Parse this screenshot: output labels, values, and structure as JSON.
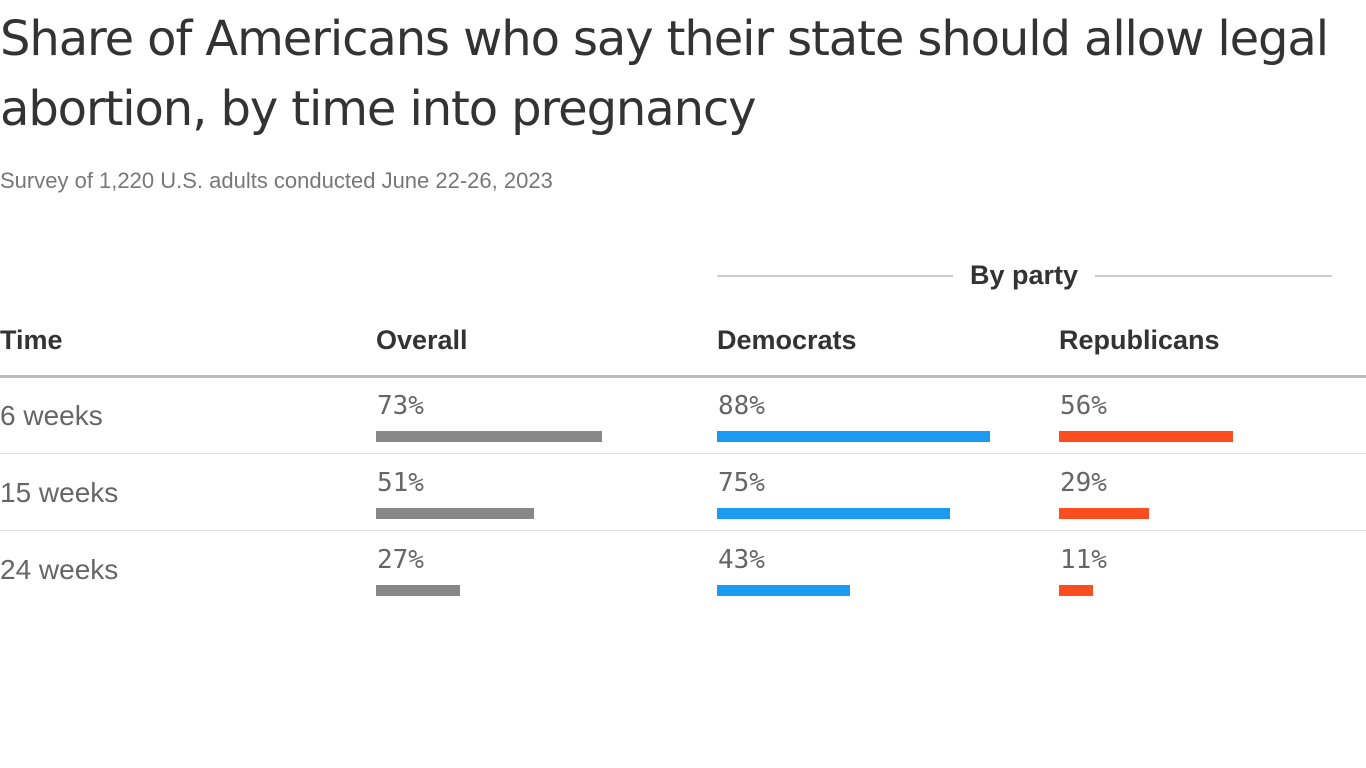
{
  "title": "Share of Americans who say their state should allow legal abortion, by time into pregnancy",
  "subtitle": "Survey of 1,220 U.S. adults conducted June 22-26, 2023",
  "group_label": "By party",
  "columns": {
    "time": "Time",
    "overall": "Overall",
    "democrats": "Democrats",
    "republicans": "Republicans"
  },
  "colors": {
    "overall": "#888888",
    "democrats": "#1a9af0",
    "republicans": "#fa4d20"
  },
  "rows": [
    {
      "label": "6 weeks",
      "overall": "73%",
      "democrats": "88%",
      "republicans": "56%"
    },
    {
      "label": "15 weeks",
      "overall": "51%",
      "democrats": "75%",
      "republicans": "29%"
    },
    {
      "label": "24 weeks",
      "overall": "27%",
      "democrats": "43%",
      "republicans": "11%"
    }
  ],
  "chart_data": {
    "type": "table",
    "title": "Share of Americans who say their state should allow legal abortion, by time into pregnancy",
    "subtitle": "Survey of 1,220 U.S. adults conducted June 22-26, 2023",
    "categories": [
      "6 weeks",
      "15 weeks",
      "24 weeks"
    ],
    "series": [
      {
        "name": "Overall",
        "values": [
          73,
          51,
          27
        ]
      },
      {
        "name": "Democrats",
        "values": [
          88,
          75,
          43
        ]
      },
      {
        "name": "Republicans",
        "values": [
          56,
          29,
          11
        ]
      }
    ],
    "unit": "%",
    "ylim": [
      0,
      100
    ]
  }
}
